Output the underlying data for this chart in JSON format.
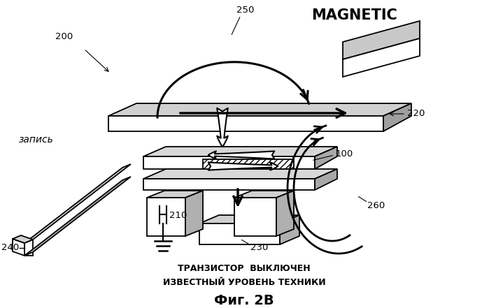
{
  "title": "Фиг. 2В",
  "subtitle1": "ТРАНЗИСТОР  ВЫКЛЮЧЕН",
  "subtitle2": "ИЗВЕСТНЫЙ УРОВЕНЬ ТЕХНИКИ",
  "label_magnetic": "MAGNETIC",
  "label_write": "запись",
  "label_200": "200",
  "label_220": "220",
  "label_250": "250",
  "label_210": "210",
  "label_240": "240",
  "label_100": "100",
  "label_230": "230",
  "label_260": "260",
  "bg_color": "#ffffff",
  "line_color": "#000000",
  "figsize": [
    6.99,
    4.41
  ],
  "dpi": 100
}
